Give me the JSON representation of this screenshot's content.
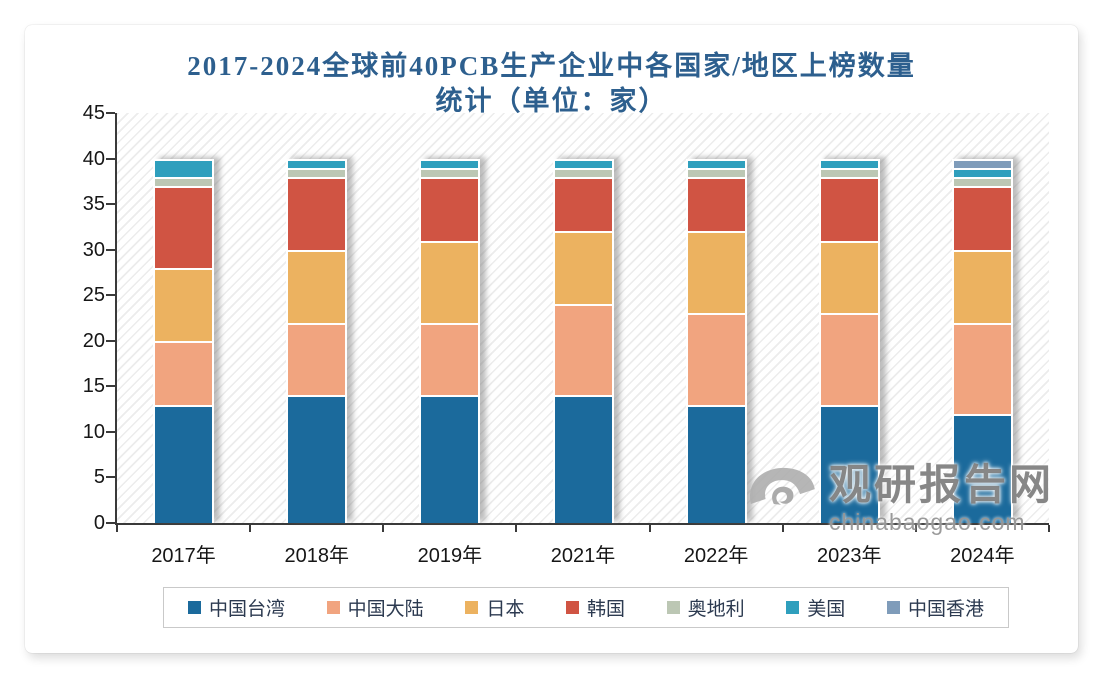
{
  "watermark": {
    "brand": "观研报告网",
    "domain": "chinabaogao.com"
  },
  "chart_data": {
    "type": "bar",
    "stacked": true,
    "title": "2017-2024全球前40PCB生产企业中各国家/地区上榜数量统计（单位：家）",
    "title_line1": "2017-2024全球前40PCB生产企业中各国家/地区上榜数量",
    "title_line2": "统计（单位：家）",
    "unit": "家",
    "categories": [
      "2017年",
      "2018年",
      "2019年",
      "2021年",
      "2022年",
      "2023年",
      "2024年"
    ],
    "series": [
      {
        "name": "中国台湾",
        "color": "#1b6a9c",
        "values": [
          13,
          14,
          14,
          14,
          13,
          13,
          12
        ]
      },
      {
        "name": "中国大陆",
        "color": "#f1a47f",
        "values": [
          7,
          8,
          8,
          10,
          10,
          10,
          10
        ]
      },
      {
        "name": "日本",
        "color": "#ecb260",
        "values": [
          8,
          8,
          9,
          8,
          9,
          8,
          8
        ]
      },
      {
        "name": "韩国",
        "color": "#d05443",
        "values": [
          9,
          8,
          7,
          6,
          6,
          7,
          7
        ]
      },
      {
        "name": "奥地利",
        "color": "#bcc7b4",
        "values": [
          1,
          1,
          1,
          1,
          1,
          1,
          1
        ]
      },
      {
        "name": "美国",
        "color": "#2f9fbd",
        "values": [
          2,
          1,
          1,
          1,
          1,
          1,
          1
        ]
      },
      {
        "name": "中国香港",
        "color": "#7f9cba",
        "values": [
          0,
          0,
          0,
          0,
          0,
          0,
          1
        ]
      }
    ],
    "totals": [
      40,
      40,
      40,
      40,
      40,
      40,
      40
    ],
    "ylim": [
      0,
      45
    ],
    "yticks": [
      0,
      5,
      10,
      15,
      20,
      25,
      30,
      35,
      40,
      45
    ],
    "grid": false,
    "legend_position": "bottom",
    "plot_background": "diagonal-hatch",
    "axis_color": "#3a3a3a",
    "title_color": "#2d5f8e"
  }
}
